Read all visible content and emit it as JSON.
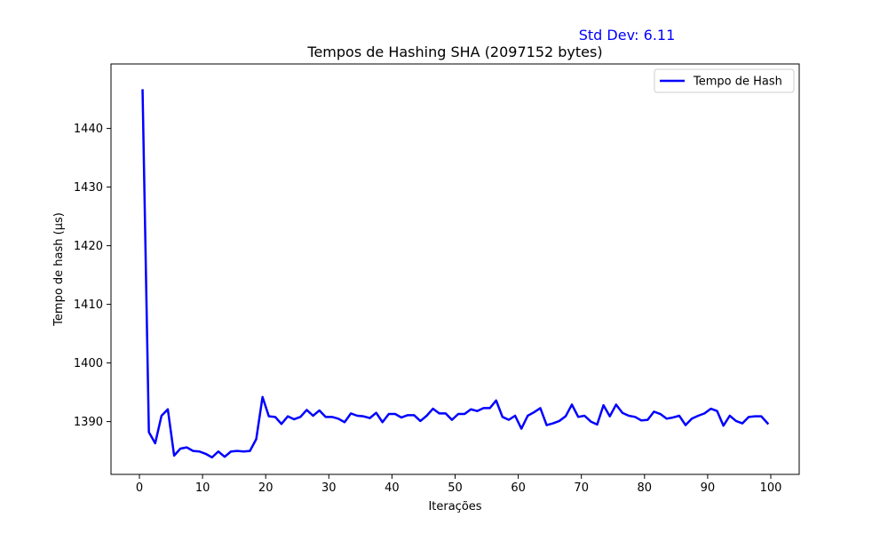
{
  "chart_data": {
    "type": "line",
    "title": "Tempos de Hashing SHA (2097152 bytes)",
    "annotation": "Std Dev: 6.11",
    "annotation_color": "#0000ff",
    "xlabel": "Iterações",
    "ylabel": "Tempo de hash (µs)",
    "xlim": [
      -4.5,
      104.5
    ],
    "ylim": [
      1381,
      1451
    ],
    "xticks": [
      0,
      10,
      20,
      30,
      40,
      50,
      60,
      70,
      80,
      90,
      100
    ],
    "yticks": [
      1390,
      1400,
      1410,
      1420,
      1430,
      1440
    ],
    "grid": false,
    "legend_position": "top-right",
    "series": [
      {
        "name": "Tempo de Hash",
        "color": "#0000ff",
        "x": [
          0.5,
          1.5,
          2.5,
          3.5,
          4.5,
          5.5,
          6.5,
          7.5,
          8.5,
          9.5,
          10.5,
          11.5,
          12.5,
          13.5,
          14.5,
          15.5,
          16.5,
          17.5,
          18.5,
          19.5,
          20.5,
          21.5,
          22.5,
          23.5,
          24.5,
          25.5,
          26.5,
          27.5,
          28.5,
          29.5,
          30.5,
          31.5,
          32.5,
          33.5,
          34.5,
          35.5,
          36.5,
          37.5,
          38.5,
          39.5,
          40.5,
          41.5,
          42.5,
          43.5,
          44.5,
          45.5,
          46.5,
          47.5,
          48.5,
          49.5,
          50.5,
          51.5,
          52.5,
          53.5,
          54.5,
          55.5,
          56.5,
          57.5,
          58.5,
          59.5,
          60.5,
          61.5,
          62.5,
          63.5,
          64.5,
          65.5,
          66.5,
          67.5,
          68.5,
          69.5,
          70.5,
          71.5,
          72.5,
          73.5,
          74.5,
          75.5,
          76.5,
          77.5,
          78.5,
          79.5,
          80.5,
          81.5,
          82.5,
          83.5,
          84.5,
          85.5,
          86.5,
          87.5,
          88.5,
          89.5,
          90.5,
          91.5,
          92.5,
          93.5,
          94.5,
          95.5,
          96.5,
          97.5,
          98.5,
          99.5
        ],
        "values": [
          1446.5,
          1388.2,
          1386.3,
          1391.0,
          1392.1,
          1384.2,
          1385.4,
          1385.6,
          1385.0,
          1384.9,
          1384.5,
          1383.9,
          1384.9,
          1384.0,
          1384.9,
          1385.0,
          1384.9,
          1385.0,
          1387.0,
          1394.2,
          1390.9,
          1390.8,
          1389.6,
          1390.9,
          1390.4,
          1390.8,
          1392.0,
          1391.0,
          1391.9,
          1390.8,
          1390.8,
          1390.5,
          1389.9,
          1391.4,
          1391.0,
          1390.9,
          1390.6,
          1391.5,
          1389.9,
          1391.3,
          1391.3,
          1390.7,
          1391.1,
          1391.1,
          1390.1,
          1391.0,
          1392.2,
          1391.4,
          1391.4,
          1390.3,
          1391.3,
          1391.3,
          1392.1,
          1391.8,
          1392.3,
          1392.3,
          1393.6,
          1390.8,
          1390.3,
          1391.0,
          1388.8,
          1391.0,
          1391.6,
          1392.3,
          1389.4,
          1389.7,
          1390.1,
          1390.9,
          1392.9,
          1390.8,
          1391.0,
          1390.0,
          1389.5,
          1392.8,
          1390.9,
          1392.9,
          1391.5,
          1391.0,
          1390.8,
          1390.2,
          1390.3,
          1391.7,
          1391.3,
          1390.5,
          1390.7,
          1391.0,
          1389.4,
          1390.5,
          1391.0,
          1391.4,
          1392.2,
          1391.8,
          1389.3,
          1391.0,
          1390.1,
          1389.7,
          1390.8,
          1390.9,
          1390.9,
          1389.7
        ]
      }
    ]
  }
}
